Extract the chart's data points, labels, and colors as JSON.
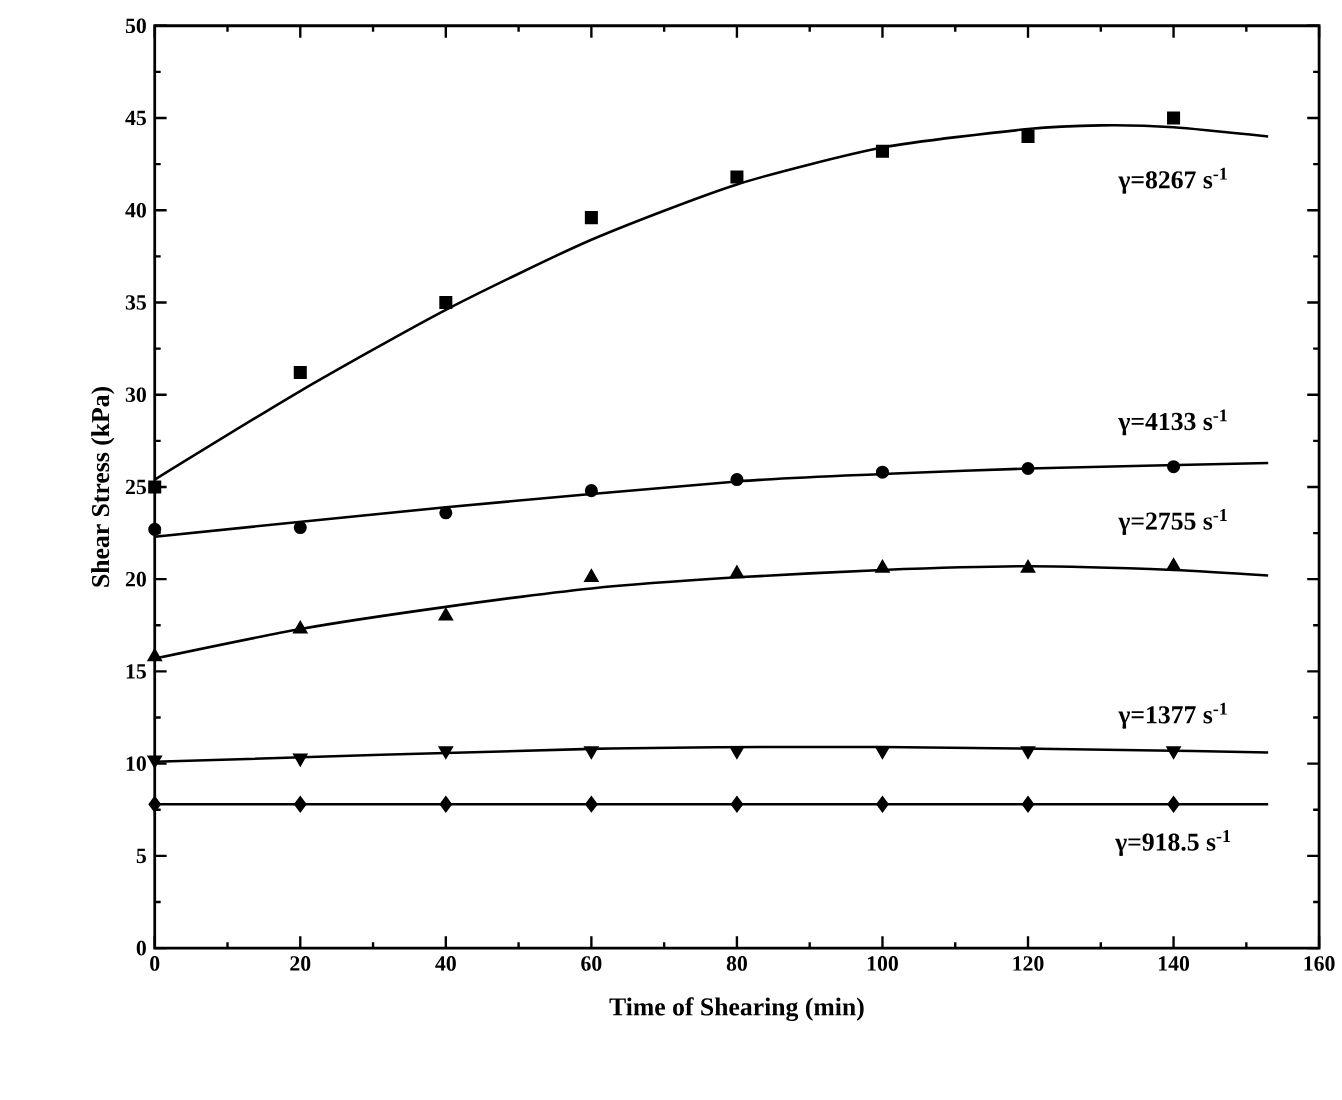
{
  "chart_data": {
    "type": "scatter",
    "xlabel": "Time of Shearing (min)",
    "ylabel": "Shear Stress (kPa)",
    "xlim": [
      0,
      160
    ],
    "xticks": [
      0,
      20,
      40,
      60,
      80,
      100,
      120,
      140,
      160
    ],
    "ylim": [
      0,
      50
    ],
    "yticks": [
      0,
      5,
      10,
      15,
      20,
      25,
      30,
      35,
      40,
      45,
      50
    ],
    "grid": false,
    "legend": false,
    "series": [
      {
        "name": "γ=8267 s$^{-1}$",
        "marker": "square",
        "color": "#000000",
        "x": [
          0,
          20,
          40,
          60,
          80,
          100,
          120,
          140
        ],
        "values": [
          25.0,
          31.2,
          35.0,
          39.6,
          41.8,
          43.2,
          44.0,
          45.0
        ]
      },
      {
        "name": "γ=4133 s$^{-1}$",
        "marker": "circle",
        "color": "#000000",
        "x": [
          0,
          20,
          40,
          60,
          80,
          100,
          120,
          140
        ],
        "values": [
          22.7,
          22.8,
          23.6,
          24.8,
          25.4,
          25.8,
          26.0,
          26.1
        ]
      },
      {
        "name": "γ=2755 s$^{-1}$",
        "marker": "triangle",
        "color": "#000000",
        "x": [
          0,
          20,
          40,
          60,
          80,
          100,
          120,
          140
        ],
        "values": [
          15.8,
          17.3,
          18.0,
          20.1,
          20.3,
          20.6,
          20.6,
          20.7
        ]
      },
      {
        "name": "γ=1377 s$^{-1}$",
        "marker": "triangle-down",
        "color": "#000000",
        "x": [
          0,
          20,
          40,
          60,
          80,
          100,
          120,
          140
        ],
        "values": [
          10.2,
          10.3,
          10.7,
          10.7,
          10.7,
          10.7,
          10.7,
          10.7
        ]
      },
      {
        "name": "γ=918.5 s$^{-1}$",
        "marker": "diamond",
        "color": "#000000",
        "x": [
          0,
          20,
          40,
          60,
          80,
          100,
          120,
          140
        ],
        "values": [
          7.8,
          7.8,
          7.8,
          7.8,
          7.8,
          7.8,
          7.8,
          7.8
        ]
      },
      {
        "type": "line",
        "marker": "none",
        "color": "#000000",
        "x": [
          0,
          20,
          40,
          60,
          80,
          100,
          120,
          130,
          140,
          153
        ],
        "values": [
          25.4,
          30.2,
          34.6,
          38.4,
          41.4,
          43.4,
          44.4,
          44.6,
          44.5,
          44.0
        ]
      },
      {
        "type": "line",
        "marker": "none",
        "color": "#000000",
        "x": [
          0,
          40,
          80,
          100,
          120,
          153
        ],
        "values": [
          22.3,
          23.9,
          25.3,
          25.7,
          26.0,
          26.3
        ]
      },
      {
        "type": "line",
        "marker": "none",
        "color": "#000000",
        "x": [
          0,
          20,
          40,
          60,
          80,
          100,
          120,
          140,
          153
        ],
        "values": [
          15.7,
          17.3,
          18.5,
          19.5,
          20.1,
          20.5,
          20.7,
          20.5,
          20.2
        ]
      },
      {
        "type": "line",
        "marker": "none",
        "color": "#000000",
        "x": [
          0,
          60,
          100,
          140,
          153
        ],
        "values": [
          10.1,
          10.8,
          10.9,
          10.7,
          10.6
        ]
      },
      {
        "type": "line",
        "marker": "none",
        "color": "#000000",
        "x": [
          0,
          40,
          80,
          120,
          153
        ],
        "values": [
          7.8,
          7.8,
          7.8,
          7.8,
          7.8
        ]
      }
    ]
  }
}
